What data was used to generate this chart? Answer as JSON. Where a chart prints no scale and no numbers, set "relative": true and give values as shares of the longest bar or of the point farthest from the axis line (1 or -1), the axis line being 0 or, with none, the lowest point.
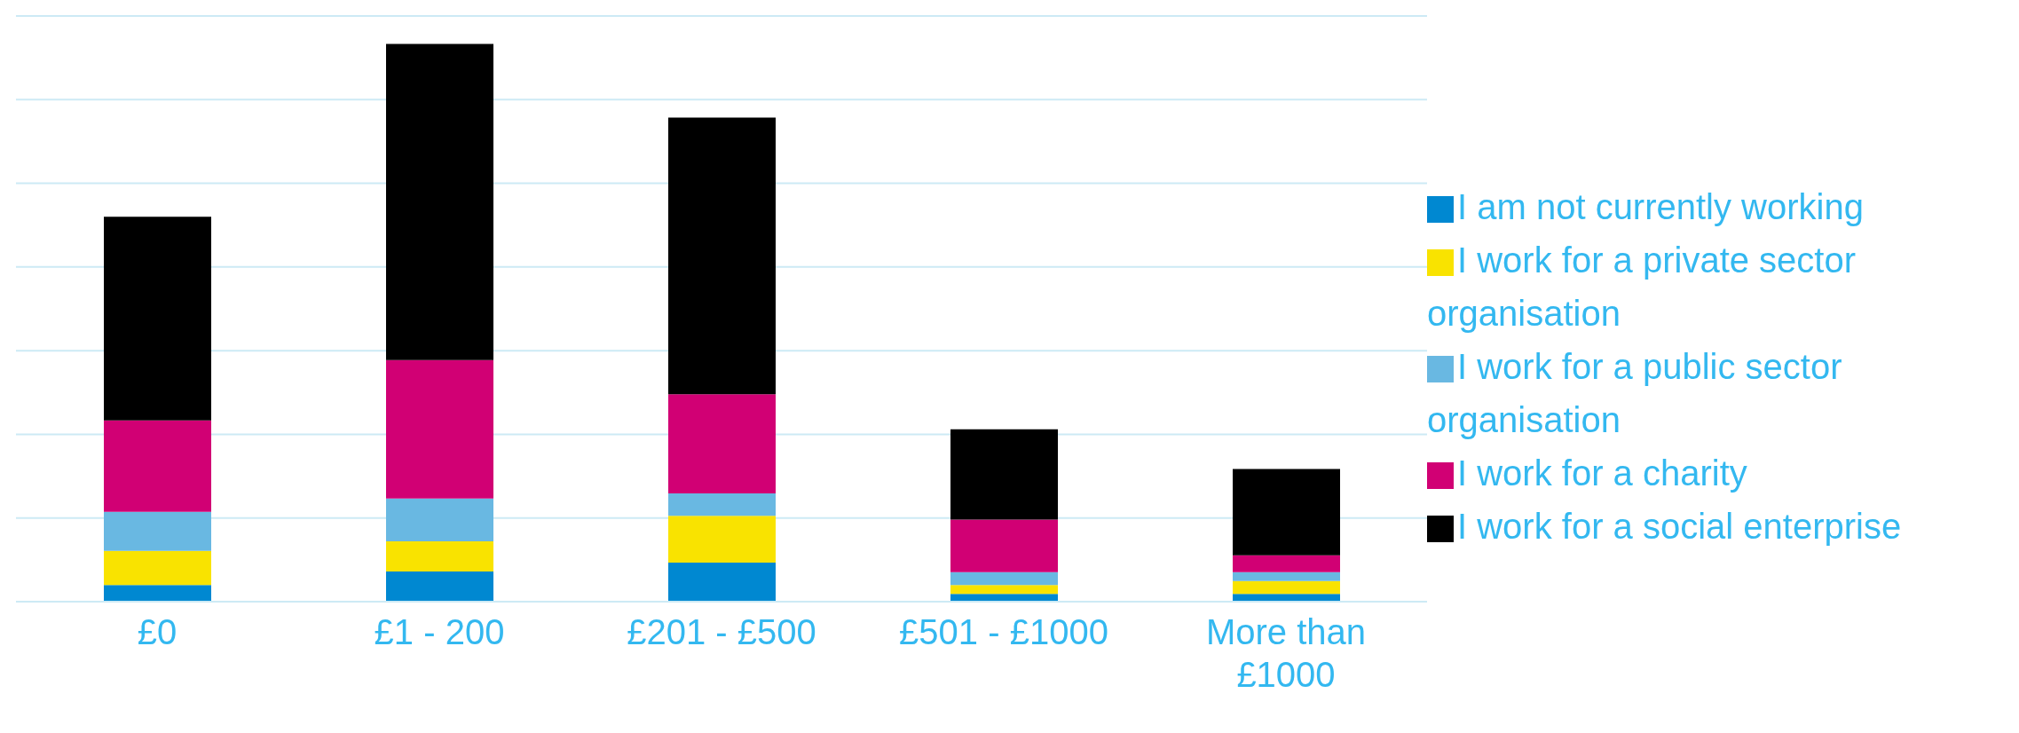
{
  "chart_data": {
    "type": "bar",
    "stacked": true,
    "relative": true,
    "categories": [
      "£0",
      "£1 - 200",
      "£201 - £500",
      "£501 - £1000",
      "More than £1000"
    ],
    "series": [
      {
        "name": "I am not currently working",
        "color": "#0088d1",
        "values": [
          0.03,
          0.054,
          0.07,
          0.014,
          0.014
        ]
      },
      {
        "name": "I work for a private sector organisation",
        "color": "#f9e300",
        "values": [
          0.061,
          0.054,
          0.084,
          0.016,
          0.023
        ]
      },
      {
        "name": "I work for a public sector organisation",
        "color": "#69b8e2",
        "values": [
          0.07,
          0.077,
          0.04,
          0.023,
          0.016
        ]
      },
      {
        "name": "I work for a charity",
        "color": "#d10074",
        "values": [
          0.164,
          0.248,
          0.178,
          0.094,
          0.03
        ]
      },
      {
        "name": "I work for a social enterprise",
        "color": "#000000",
        "values": [
          0.365,
          0.567,
          0.496,
          0.162,
          0.155
        ]
      }
    ],
    "grid": "y",
    "legend": "right"
  }
}
